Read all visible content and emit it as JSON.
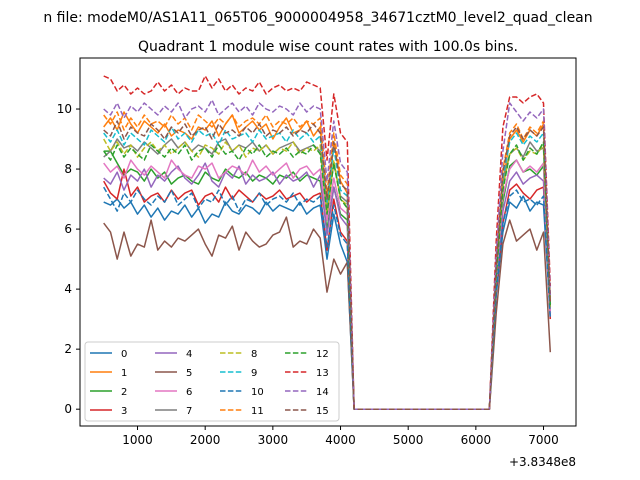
{
  "chart_data": {
    "type": "line",
    "suptitle": "n file: modeM0/AS1A11_065T06_9000004958_34671cztM0_level2_quad_clean",
    "title": "Quadrant 1 module wise count rates with 100.0s bins.",
    "xlabel": "",
    "ylabel": "",
    "x_offset_label": "+3.8348e8",
    "xlim": [
      150,
      7480
    ],
    "ylim": [
      -0.56,
      11.7
    ],
    "xticks": [
      1000,
      2000,
      3000,
      4000,
      5000,
      6000,
      7000
    ],
    "yticks": [
      0,
      2,
      4,
      6,
      8,
      10
    ],
    "grid": false,
    "legend": {
      "placement": "lower-left",
      "ncol": 4
    },
    "x": [
      500,
      600,
      700,
      800,
      900,
      1000,
      1100,
      1200,
      1300,
      1400,
      1500,
      1600,
      1700,
      1800,
      1900,
      2000,
      2100,
      2200,
      2300,
      2400,
      2500,
      2600,
      2700,
      2800,
      2900,
      3000,
      3100,
      3200,
      3300,
      3400,
      3500,
      3600,
      3700,
      3800,
      3900,
      4000,
      4100,
      4200,
      6200,
      6300,
      6400,
      6500,
      6600,
      6700,
      6800,
      6900,
      7000,
      7100
    ],
    "series": [
      {
        "name": "0",
        "color": "#1f77b4",
        "dash": "solid",
        "values": [
          6.9,
          6.8,
          7.0,
          6.7,
          6.9,
          6.5,
          6.8,
          6.4,
          6.7,
          6.3,
          6.6,
          6.5,
          6.8,
          6.4,
          6.7,
          6.2,
          6.5,
          6.4,
          6.9,
          6.6,
          6.5,
          6.8,
          6.7,
          6.5,
          6.9,
          6.6,
          6.8,
          6.7,
          6.6,
          6.9,
          6.5,
          6.7,
          6.8,
          5.0,
          6.5,
          5.5,
          4.9,
          0,
          0,
          3.8,
          5.9,
          6.9,
          6.7,
          7.1,
          6.6,
          6.9,
          6.8,
          3.2
        ]
      },
      {
        "name": "1",
        "color": "#ff7f0e",
        "dash": "solid",
        "values": [
          9.4,
          9.7,
          9.3,
          9.9,
          9.5,
          9.2,
          9.6,
          9.4,
          9.2,
          9.5,
          9.1,
          9.3,
          9.2,
          9.0,
          9.4,
          9.3,
          9.6,
          9.1,
          9.5,
          9.8,
          9.2,
          9.4,
          9.6,
          9.3,
          9.5,
          9.0,
          9.4,
          9.7,
          9.2,
          9.3,
          9.6,
          9.1,
          9.4,
          6.6,
          8.9,
          7.6,
          7.2,
          0,
          0,
          4.5,
          7.5,
          9.0,
          9.3,
          8.9,
          9.3,
          9.1,
          9.5,
          3.5
        ]
      },
      {
        "name": "2",
        "color": "#2ca02c",
        "dash": "solid",
        "values": [
          8.6,
          8.6,
          8.2,
          7.8,
          8.0,
          7.9,
          7.6,
          8.0,
          7.7,
          7.9,
          7.5,
          7.7,
          7.8,
          7.6,
          7.5,
          7.9,
          7.7,
          7.6,
          8.0,
          7.8,
          7.7,
          7.9,
          7.6,
          7.8,
          7.7,
          7.5,
          7.8,
          7.7,
          7.9,
          7.6,
          7.8,
          7.7,
          7.6,
          6.0,
          7.4,
          6.5,
          6.3,
          0,
          0,
          4.2,
          6.9,
          8.1,
          8.3,
          7.9,
          8.0,
          7.8,
          8.1,
          3.2
        ]
      },
      {
        "name": "3",
        "color": "#d62728",
        "dash": "solid",
        "values": [
          7.6,
          7.2,
          7.0,
          8.0,
          7.1,
          7.4,
          6.9,
          7.1,
          7.2,
          6.9,
          7.3,
          7.0,
          7.2,
          7.3,
          6.8,
          7.1,
          7.2,
          6.9,
          7.4,
          7.0,
          7.3,
          7.1,
          6.9,
          7.2,
          7.0,
          7.1,
          7.3,
          7.0,
          7.1,
          7.2,
          6.9,
          7.1,
          7.2,
          5.3,
          7.0,
          5.9,
          5.6,
          0,
          0,
          3.9,
          6.2,
          7.3,
          7.5,
          7.2,
          7.0,
          7.3,
          7.4,
          3.0
        ]
      },
      {
        "name": "4",
        "color": "#9467bd",
        "dash": "solid",
        "values": [
          7.7,
          7.5,
          7.9,
          7.3,
          7.8,
          7.6,
          8.0,
          7.4,
          7.8,
          7.6,
          7.9,
          8.1,
          7.7,
          7.5,
          7.8,
          8.2,
          7.6,
          7.4,
          7.9,
          7.7,
          8.1,
          7.5,
          7.8,
          7.6,
          7.7,
          7.9,
          7.5,
          7.8,
          7.6,
          7.7,
          7.9,
          7.4,
          7.8,
          5.8,
          7.4,
          6.4,
          6.1,
          0,
          0,
          4.1,
          6.6,
          7.6,
          7.9,
          7.5,
          7.7,
          7.8,
          7.6,
          3.1
        ]
      },
      {
        "name": "5",
        "color": "#8c564b",
        "dash": "solid",
        "values": [
          6.2,
          5.9,
          5.0,
          5.9,
          5.1,
          5.5,
          5.4,
          6.3,
          5.3,
          5.6,
          5.4,
          5.7,
          5.6,
          5.8,
          6.0,
          5.5,
          5.1,
          5.8,
          5.7,
          6.1,
          5.3,
          5.9,
          5.6,
          5.4,
          5.5,
          5.8,
          5.9,
          6.4,
          5.4,
          5.6,
          5.5,
          6.0,
          5.7,
          3.9,
          5.0,
          4.5,
          4.9,
          0,
          0,
          3.2,
          5.5,
          6.3,
          5.6,
          5.8,
          6.0,
          5.3,
          5.9,
          1.9
        ]
      },
      {
        "name": "6",
        "color": "#e377c2",
        "dash": "solid",
        "values": [
          8.2,
          7.9,
          8.1,
          7.7,
          8.3,
          8.0,
          7.8,
          8.1,
          7.9,
          7.7,
          8.3,
          8.0,
          7.8,
          7.7,
          8.1,
          8.0,
          8.2,
          7.7,
          7.9,
          8.1,
          8.0,
          7.8,
          8.3,
          7.9,
          8.1,
          7.8,
          8.0,
          8.2,
          7.7,
          8.0,
          8.1,
          7.8,
          8.0,
          6.3,
          7.7,
          6.7,
          6.5,
          0,
          0,
          4.3,
          7.1,
          8.0,
          8.3,
          7.9,
          8.1,
          7.9,
          8.2,
          3.2
        ]
      },
      {
        "name": "7",
        "color": "#7f7f7f",
        "dash": "solid",
        "values": [
          8.4,
          8.6,
          9.0,
          8.7,
          8.8,
          8.6,
          8.9,
          8.7,
          8.5,
          8.8,
          9.0,
          8.7,
          8.9,
          8.6,
          8.8,
          8.7,
          8.5,
          8.9,
          9.0,
          8.6,
          8.8,
          8.7,
          8.9,
          8.6,
          8.8,
          8.5,
          8.7,
          8.8,
          8.9,
          8.6,
          8.7,
          8.8,
          8.6,
          6.6,
          8.2,
          7.1,
          6.9,
          0,
          0,
          4.6,
          7.6,
          8.5,
          8.7,
          8.4,
          8.9,
          8.6,
          8.7,
          3.4
        ]
      },
      {
        "name": "8",
        "color": "#bcbd22",
        "dash": "dashed",
        "values": [
          9.0,
          8.6,
          8.9,
          8.5,
          8.8,
          8.4,
          8.7,
          8.9,
          8.6,
          8.8,
          8.5,
          8.7,
          8.9,
          8.6,
          8.4,
          8.8,
          8.7,
          8.5,
          8.9,
          8.6,
          8.8,
          8.4,
          8.7,
          8.6,
          8.8,
          8.5,
          8.7,
          8.6,
          8.9,
          8.5,
          8.7,
          8.6,
          8.8,
          6.5,
          8.3,
          7.0,
          6.8,
          0,
          0,
          4.5,
          7.4,
          8.5,
          8.7,
          8.3,
          8.6,
          8.5,
          8.8,
          3.4
        ]
      },
      {
        "name": "9",
        "color": "#17becf",
        "dash": "dashed",
        "values": [
          9.2,
          8.9,
          9.3,
          8.8,
          9.2,
          9.0,
          8.8,
          9.3,
          9.1,
          8.9,
          9.4,
          9.0,
          9.2,
          8.9,
          9.3,
          9.1,
          9.2,
          8.8,
          9.3,
          9.0,
          9.1,
          9.2,
          8.9,
          9.3,
          9.0,
          9.1,
          9.2,
          8.9,
          9.3,
          9.0,
          9.2,
          8.9,
          9.1,
          6.9,
          8.7,
          7.3,
          7.1,
          0,
          0,
          4.6,
          7.7,
          8.9,
          9.2,
          8.8,
          9.1,
          8.9,
          9.2,
          3.5
        ]
      },
      {
        "name": "10",
        "color": "#1f77b4",
        "dash": "dashed",
        "values": [
          7.4,
          7.0,
          6.6,
          7.2,
          6.9,
          7.3,
          7.0,
          6.8,
          7.1,
          6.9,
          7.3,
          6.8,
          7.0,
          7.2,
          6.7,
          7.0,
          6.9,
          7.3,
          6.8,
          7.1,
          6.6,
          7.0,
          6.9,
          7.2,
          6.8,
          7.0,
          7.1,
          6.9,
          7.2,
          6.8,
          7.0,
          6.9,
          7.1,
          5.4,
          6.8,
          5.8,
          5.5,
          0,
          0,
          3.9,
          6.2,
          7.1,
          7.3,
          6.9,
          7.0,
          6.8,
          7.1,
          3.0
        ]
      },
      {
        "name": "11",
        "color": "#ff7f0e",
        "dash": "dashed",
        "values": [
          9.8,
          9.5,
          9.9,
          9.3,
          9.7,
          9.4,
          9.8,
          9.5,
          9.6,
          9.4,
          9.8,
          9.5,
          9.7,
          9.3,
          9.8,
          9.6,
          9.4,
          9.7,
          9.5,
          9.8,
          9.4,
          9.6,
          9.7,
          9.5,
          9.8,
          9.4,
          9.6,
          9.5,
          9.7,
          9.4,
          9.6,
          9.5,
          9.7,
          7.2,
          9.2,
          7.8,
          7.5,
          0,
          0,
          4.8,
          8.0,
          9.2,
          9.5,
          9.0,
          9.4,
          9.2,
          9.6,
          3.6
        ]
      },
      {
        "name": "12",
        "color": "#2ca02c",
        "dash": "dashed",
        "values": [
          8.6,
          8.3,
          8.8,
          8.4,
          8.7,
          8.5,
          8.3,
          8.8,
          8.6,
          8.4,
          8.7,
          8.5,
          8.8,
          8.3,
          8.6,
          8.7,
          8.4,
          8.8,
          8.5,
          8.6,
          8.3,
          8.7,
          8.5,
          8.8,
          8.4,
          8.6,
          8.5,
          8.7,
          8.4,
          8.6,
          8.5,
          8.8,
          8.5,
          6.5,
          8.2,
          7.0,
          6.7,
          0,
          0,
          4.4,
          7.3,
          8.5,
          8.8,
          8.3,
          8.7,
          8.5,
          8.9,
          3.4
        ]
      },
      {
        "name": "13",
        "color": "#d62728",
        "dash": "dashed",
        "values": [
          11.1,
          11.0,
          10.6,
          10.8,
          10.5,
          10.7,
          10.5,
          10.6,
          10.9,
          10.6,
          10.8,
          10.5,
          10.7,
          10.6,
          10.6,
          11.1,
          10.7,
          11.0,
          10.6,
          10.8,
          10.5,
          10.7,
          10.6,
          10.9,
          10.5,
          10.7,
          10.8,
          10.6,
          10.7,
          10.6,
          10.9,
          10.8,
          10.7,
          8.3,
          10.5,
          9.2,
          8.9,
          0,
          0,
          5.6,
          9.4,
          10.4,
          10.4,
          10.2,
          10.4,
          10.5,
          10.2,
          4.1
        ]
      },
      {
        "name": "14",
        "color": "#9467bd",
        "dash": "dashed",
        "values": [
          10.0,
          9.8,
          10.2,
          9.7,
          10.1,
          9.9,
          10.2,
          10.0,
          9.8,
          10.1,
          9.9,
          10.2,
          9.7,
          10.0,
          10.1,
          9.9,
          10.3,
          9.8,
          10.0,
          10.2,
          9.9,
          10.1,
          9.8,
          10.2,
          10.0,
          9.9,
          10.1,
          10.0,
          9.8,
          10.2,
          9.9,
          10.1,
          10.0,
          7.6,
          9.6,
          8.2,
          7.9,
          0,
          0,
          5.1,
          8.6,
          10.2,
          9.9,
          9.6,
          9.9,
          9.7,
          10.0,
          3.8
        ]
      },
      {
        "name": "15",
        "color": "#8c564b",
        "dash": "dashed",
        "values": [
          9.3,
          9.1,
          9.6,
          9.0,
          9.4,
          9.2,
          9.1,
          9.5,
          9.3,
          9.0,
          9.4,
          9.2,
          9.5,
          9.1,
          9.3,
          9.4,
          9.0,
          9.5,
          9.2,
          9.3,
          9.1,
          9.4,
          9.2,
          9.5,
          9.1,
          9.3,
          9.2,
          9.4,
          9.1,
          9.3,
          9.2,
          9.5,
          9.2,
          7.0,
          8.9,
          7.5,
          7.3,
          0,
          0,
          4.7,
          7.9,
          9.1,
          9.4,
          9.0,
          9.3,
          9.1,
          9.4,
          3.5
        ]
      }
    ]
  }
}
